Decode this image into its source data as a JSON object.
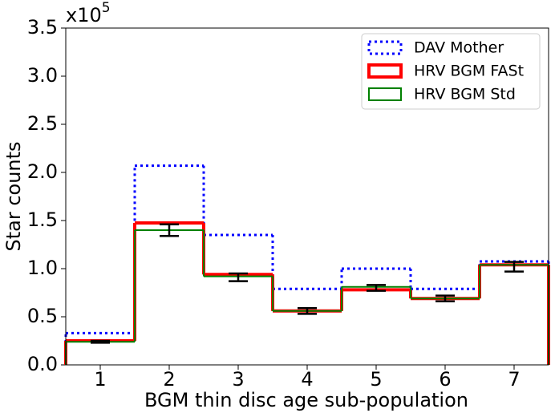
{
  "chart_data": {
    "type": "histogram",
    "axis_multiplier": {
      "base": "x10",
      "exponent": "5"
    },
    "xlabel": "BGM thin disc age sub-population",
    "ylabel": "Star counts",
    "bins": [
      0.5,
      1.5,
      2.5,
      3.5,
      4.5,
      5.5,
      6.5,
      7.5
    ],
    "xlim": [
      0.5,
      7.5
    ],
    "xticks": [
      1,
      2,
      3,
      4,
      5,
      6,
      7
    ],
    "ylim": [
      0,
      3.5
    ],
    "yticks": [
      {
        "value": 0,
        "label": "0.0"
      },
      {
        "value": 0.5,
        "label": "0.5"
      },
      {
        "value": 1,
        "label": "1.0"
      },
      {
        "value": 1.5,
        "label": "1.5"
      },
      {
        "value": 2,
        "label": "2.0"
      },
      {
        "value": 2.5,
        "label": "2.5"
      },
      {
        "value": 3,
        "label": "3.0"
      },
      {
        "value": 3.5,
        "label": "3.5"
      }
    ],
    "legend": "upper right",
    "series": [
      {
        "name": "DAV Mother",
        "color": "#0000ff",
        "style": "dotted",
        "values": [
          0.33,
          2.07,
          1.35,
          0.79,
          1.0,
          0.79,
          1.075
        ]
      },
      {
        "name": "HRV BGM FASt",
        "color": "#ff0000",
        "style": "thick",
        "values": [
          0.25,
          1.475,
          0.94,
          0.56,
          0.78,
          0.69,
          1.04
        ]
      },
      {
        "name": "HRV BGM Std",
        "color": "#008000",
        "style": "solid",
        "values": [
          0.24,
          1.4,
          0.92,
          0.56,
          0.81,
          0.69,
          1.04
        ]
      }
    ],
    "errorbars": {
      "color": "#000000",
      "values": [
        0.24,
        1.4,
        0.91,
        0.56,
        0.8,
        0.69,
        1.02
      ],
      "errors": [
        0.01,
        0.06,
        0.04,
        0.03,
        0.03,
        0.03,
        0.05
      ]
    }
  }
}
